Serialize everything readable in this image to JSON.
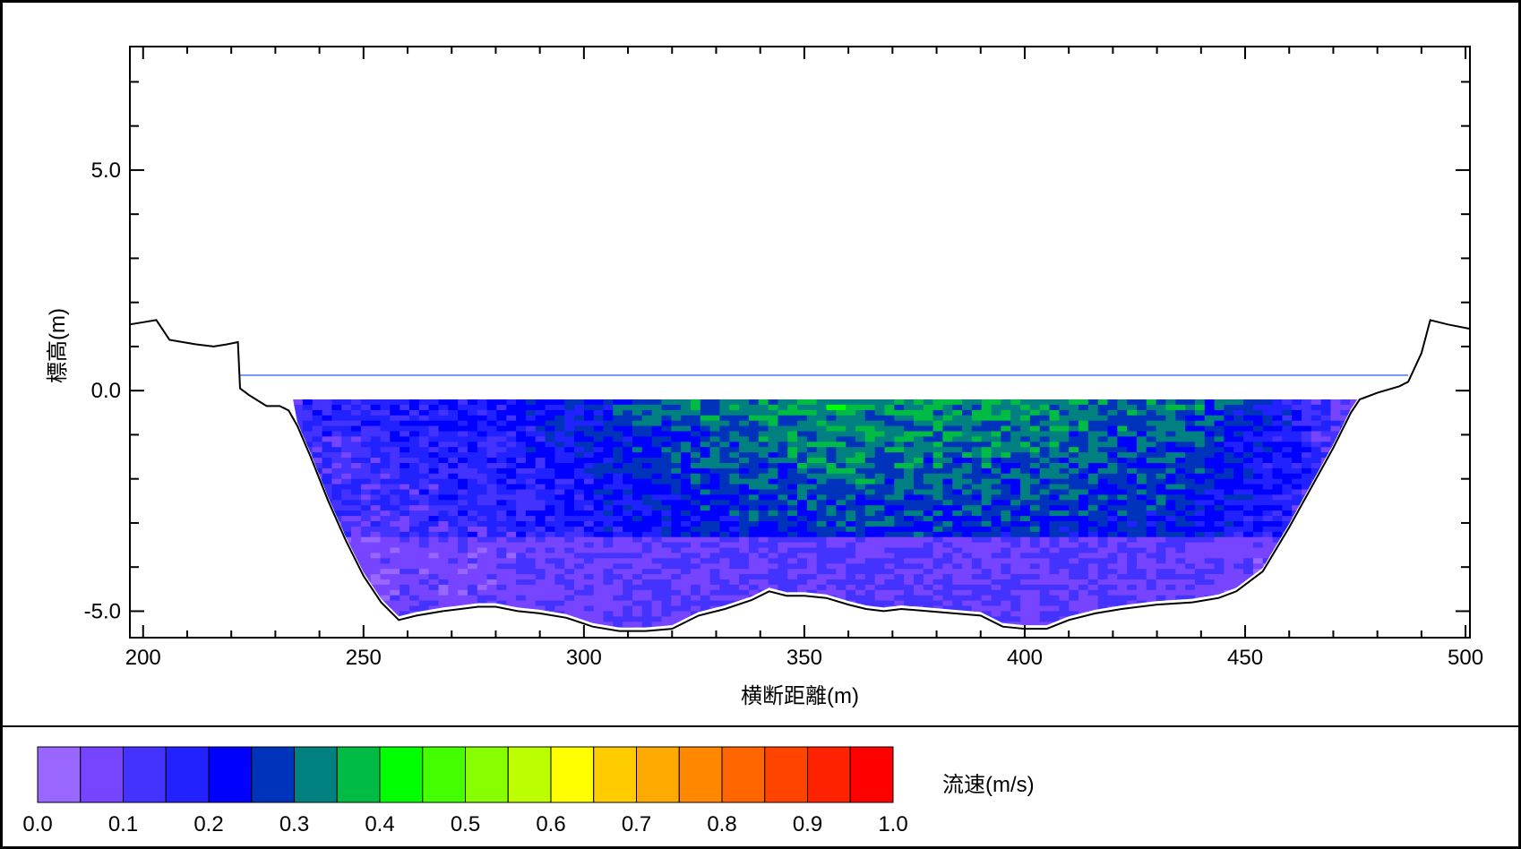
{
  "chart_data": {
    "type": "heatmap",
    "title": "",
    "xlabel": "横断距離(m)",
    "ylabel": "標高(m)",
    "xlim": [
      197,
      501
    ],
    "ylim": [
      -5.6,
      7.8
    ],
    "x_ticks": [
      {
        "value": 200,
        "label": "200"
      },
      {
        "value": 250,
        "label": "250"
      },
      {
        "value": 300,
        "label": "300"
      },
      {
        "value": 350,
        "label": "350"
      },
      {
        "value": 400,
        "label": "400"
      },
      {
        "value": 450,
        "label": "450"
      },
      {
        "value": 500,
        "label": "500"
      }
    ],
    "y_ticks": [
      {
        "value": 5,
        "label": "5.0"
      },
      {
        "value": 0,
        "label": "0.0"
      },
      {
        "value": -5,
        "label": "-5.0"
      }
    ],
    "water_level": 0.35,
    "riverbed_profile": [
      [
        197,
        1.5
      ],
      [
        200,
        1.55
      ],
      [
        203,
        1.6
      ],
      [
        206,
        1.15
      ],
      [
        212,
        1.05
      ],
      [
        216,
        1.0
      ],
      [
        219,
        1.05
      ],
      [
        221.5,
        1.1
      ],
      [
        222,
        0.05
      ],
      [
        224,
        -0.1
      ],
      [
        228,
        -0.35
      ],
      [
        231,
        -0.35
      ],
      [
        233,
        -0.45
      ],
      [
        235,
        -0.8
      ],
      [
        238,
        -1.5
      ],
      [
        242,
        -2.5
      ],
      [
        246,
        -3.4
      ],
      [
        250,
        -4.2
      ],
      [
        254,
        -4.8
      ],
      [
        258,
        -5.2
      ],
      [
        262,
        -5.1
      ],
      [
        268,
        -5.0
      ],
      [
        272,
        -4.95
      ],
      [
        276,
        -4.9
      ],
      [
        280,
        -4.9
      ],
      [
        285,
        -5.0
      ],
      [
        290,
        -5.05
      ],
      [
        296,
        -5.15
      ],
      [
        302,
        -5.35
      ],
      [
        308,
        -5.45
      ],
      [
        314,
        -5.45
      ],
      [
        320,
        -5.4
      ],
      [
        326,
        -5.1
      ],
      [
        332,
        -4.95
      ],
      [
        338,
        -4.75
      ],
      [
        342,
        -4.55
      ],
      [
        346,
        -4.65
      ],
      [
        350,
        -4.65
      ],
      [
        355,
        -4.7
      ],
      [
        360,
        -4.85
      ],
      [
        364,
        -4.95
      ],
      [
        368,
        -5.0
      ],
      [
        372,
        -4.95
      ],
      [
        378,
        -5.0
      ],
      [
        384,
        -5.05
      ],
      [
        390,
        -5.1
      ],
      [
        395,
        -5.35
      ],
      [
        400,
        -5.4
      ],
      [
        405,
        -5.4
      ],
      [
        410,
        -5.2
      ],
      [
        416,
        -5.05
      ],
      [
        422,
        -4.95
      ],
      [
        430,
        -4.85
      ],
      [
        438,
        -4.8
      ],
      [
        444,
        -4.7
      ],
      [
        448,
        -4.55
      ],
      [
        454,
        -4.1
      ],
      [
        460,
        -3.1
      ],
      [
        465,
        -2.2
      ],
      [
        470,
        -1.3
      ],
      [
        474,
        -0.5
      ],
      [
        476,
        -0.2
      ],
      [
        480,
        -0.05
      ],
      [
        485,
        0.1
      ],
      [
        487,
        0.2
      ],
      [
        490,
        0.85
      ],
      [
        492,
        1.6
      ],
      [
        496,
        1.5
      ],
      [
        501,
        1.4
      ]
    ],
    "velocity_region": {
      "x": [
        234,
        476
      ],
      "y_top": -0.2,
      "interface_elevation": -3.3
    },
    "velocity_summary": [
      {
        "x": 240,
        "upper": 0.15,
        "lower": 0.05
      },
      {
        "x": 260,
        "upper": 0.18,
        "lower": 0.08
      },
      {
        "x": 280,
        "upper": 0.2,
        "lower": 0.08
      },
      {
        "x": 300,
        "upper": 0.24,
        "lower": 0.09
      },
      {
        "x": 320,
        "upper": 0.3,
        "lower": 0.1
      },
      {
        "x": 340,
        "upper": 0.33,
        "lower": 0.1
      },
      {
        "x": 360,
        "upper": 0.35,
        "lower": 0.1
      },
      {
        "x": 380,
        "upper": 0.34,
        "lower": 0.1
      },
      {
        "x": 400,
        "upper": 0.34,
        "lower": 0.1
      },
      {
        "x": 420,
        "upper": 0.32,
        "lower": 0.1
      },
      {
        "x": 440,
        "upper": 0.3,
        "lower": 0.09
      },
      {
        "x": 460,
        "upper": 0.2,
        "lower": 0.07
      },
      {
        "x": 474,
        "upper": 0.1,
        "lower": 0.05
      }
    ],
    "colorbar": {
      "title": "流速(m/s)",
      "labels": [
        "0.0",
        "0.1",
        "0.2",
        "0.3",
        "0.4",
        "0.5",
        "0.6",
        "0.7",
        "0.8",
        "0.9",
        "1.0"
      ],
      "colors": [
        "#9966ff",
        "#7744ff",
        "#4433ff",
        "#2222ff",
        "#0000ff",
        "#0033bb",
        "#008080",
        "#00bb44",
        "#00ff00",
        "#44ff00",
        "#88ff00",
        "#bbff00",
        "#ffff00",
        "#ffcc00",
        "#ffaa00",
        "#ff8800",
        "#ff6600",
        "#ff4400",
        "#ff2200",
        "#ff0000"
      ]
    },
    "grid": false,
    "legend": "bottom"
  }
}
